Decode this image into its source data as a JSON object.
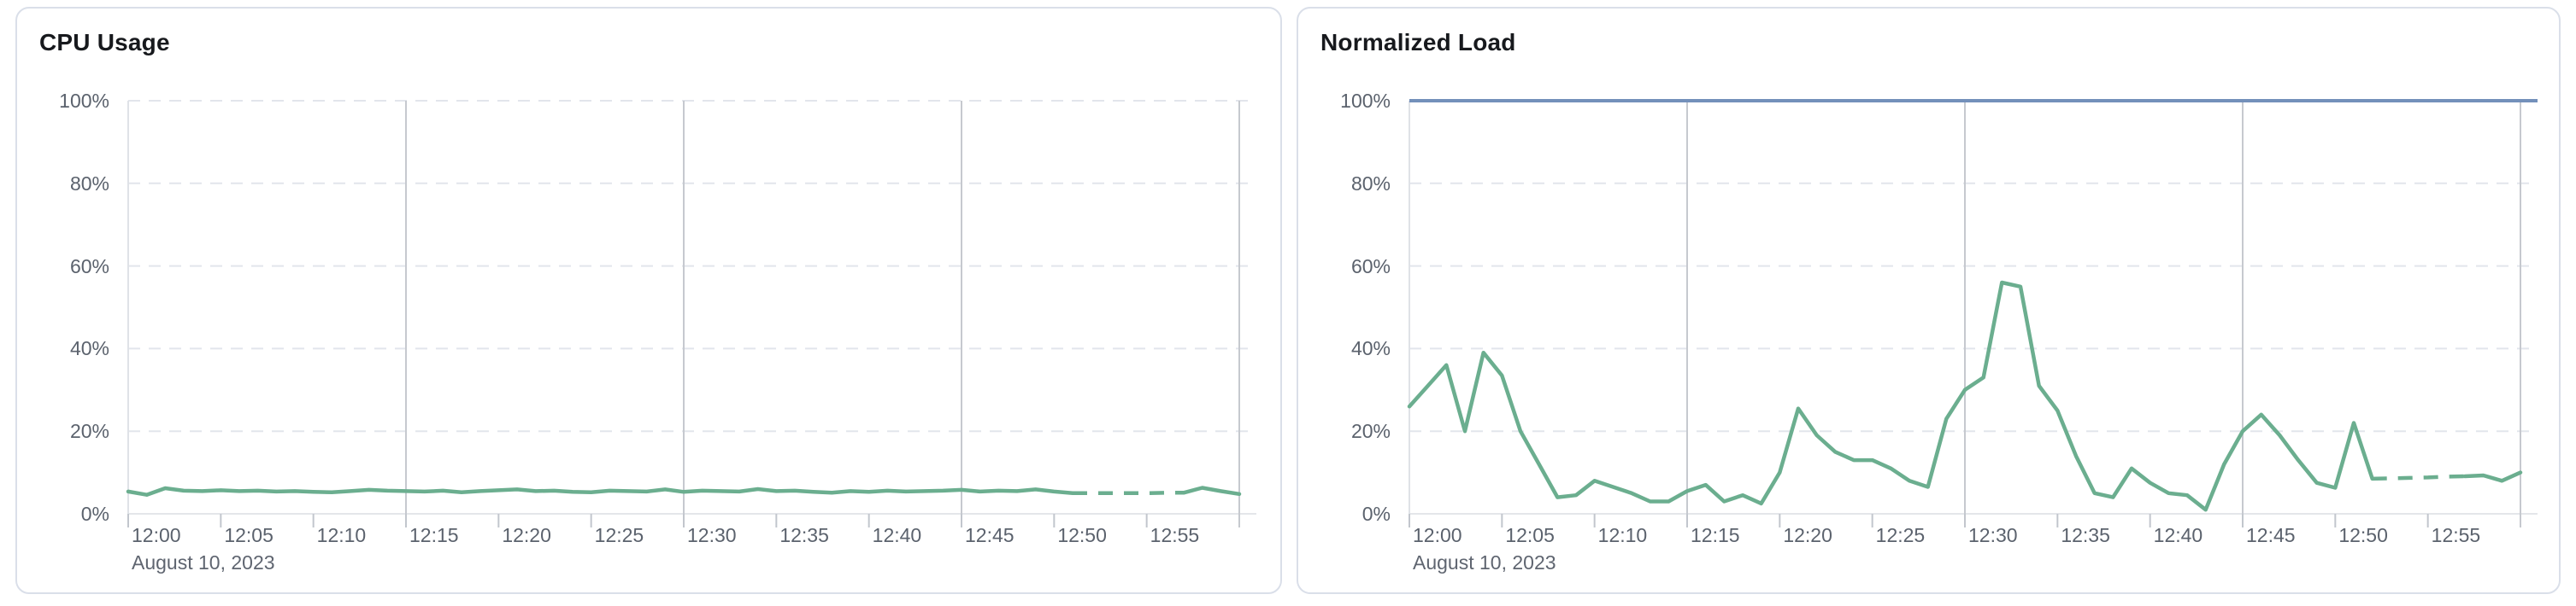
{
  "theme": {
    "page_background": "#ffffff",
    "panel_background": "#ffffff",
    "panel_border": "#dadfe9",
    "title_color": "#17191d",
    "axis_label_color": "#5b626d",
    "grid_dashed_color": "#e2e5ec",
    "grid_solid_color": "#c6c9cf",
    "axis_line_color": "#e4e6ea",
    "plot_border_color": "#dfe2e7",
    "tick_color": "#c2c6cd",
    "series_green": "#6bae8f",
    "limit_blue": "#7390ba"
  },
  "chart_data": [
    {
      "type": "line",
      "title": "CPU Usage",
      "xlabel": "",
      "ylabel": "",
      "y_unit": "%",
      "ylim": [
        0,
        100
      ],
      "y_tick_labels": [
        "100%",
        "80%",
        "60%",
        "40%",
        "20%",
        "0%"
      ],
      "x_tick_labels": [
        "12:00",
        "12:05",
        "12:10",
        "12:15",
        "12:20",
        "12:25",
        "12:30",
        "12:35",
        "12:40",
        "12:45",
        "12:50",
        "12:55"
      ],
      "x_axis_date_label": "August 10, 2023",
      "x_start": "12:00",
      "x_end": "13:00",
      "sample_interval_minutes": 1,
      "grid": {
        "horizontal_dashed": true,
        "vertical_solid_every_minutes": 15
      },
      "legend": "none",
      "series": [
        {
          "name": "cpu-usage",
          "color": "#6bae8f",
          "dashed_segment_index_range": [
            51,
            57
          ],
          "values": [
            5.4,
            4.6,
            6.2,
            5.6,
            5.5,
            5.7,
            5.5,
            5.6,
            5.4,
            5.5,
            5.3,
            5.2,
            5.5,
            5.8,
            5.6,
            5.5,
            5.4,
            5.6,
            5.2,
            5.5,
            5.7,
            5.9,
            5.5,
            5.6,
            5.3,
            5.2,
            5.6,
            5.5,
            5.4,
            5.9,
            5.3,
            5.6,
            5.5,
            5.4,
            6.0,
            5.5,
            5.6,
            5.3,
            5.1,
            5.5,
            5.3,
            5.6,
            5.4,
            5.5,
            5.6,
            5.8,
            5.4,
            5.6,
            5.5,
            5.9,
            5.4,
            5.0,
            5.0,
            5.0,
            5.0,
            5.0,
            5.1,
            5.1,
            6.3,
            5.5,
            4.8
          ]
        }
      ]
    },
    {
      "type": "line",
      "title": "Normalized Load",
      "xlabel": "",
      "ylabel": "",
      "y_unit": "%",
      "ylim": [
        0,
        100
      ],
      "y_tick_labels": [
        "100%",
        "80%",
        "60%",
        "40%",
        "20%",
        "0%"
      ],
      "x_tick_labels": [
        "12:00",
        "12:05",
        "12:10",
        "12:15",
        "12:20",
        "12:25",
        "12:30",
        "12:35",
        "12:40",
        "12:45",
        "12:50",
        "12:55"
      ],
      "x_axis_date_label": "August 10, 2023",
      "x_start": "12:00",
      "x_end": "13:00",
      "sample_interval_minutes": 1,
      "grid": {
        "horizontal_dashed": true,
        "vertical_solid_every_minutes": 15
      },
      "legend": "none",
      "limit_line": {
        "value": 100,
        "color": "#7390ba"
      },
      "series": [
        {
          "name": "normalized-load",
          "color": "#6bae8f",
          "dashed_segment_index_range": [
            52,
            57
          ],
          "values": [
            26,
            31,
            36,
            20,
            39,
            33.5,
            20,
            12,
            4,
            4.5,
            8,
            6.5,
            5,
            3,
            3,
            5.5,
            7,
            3,
            4.5,
            2.5,
            10,
            25.5,
            19,
            15,
            13,
            13,
            11,
            8,
            6.5,
            23,
            30,
            33,
            56,
            55,
            31,
            25,
            14,
            5,
            4,
            11,
            7.5,
            5,
            4.5,
            1,
            12,
            20,
            24,
            19,
            13,
            7.5,
            6.3,
            22,
            8.5,
            8.6,
            8.7,
            8.8,
            9,
            9.1,
            9.3,
            8,
            10
          ]
        }
      ]
    }
  ]
}
